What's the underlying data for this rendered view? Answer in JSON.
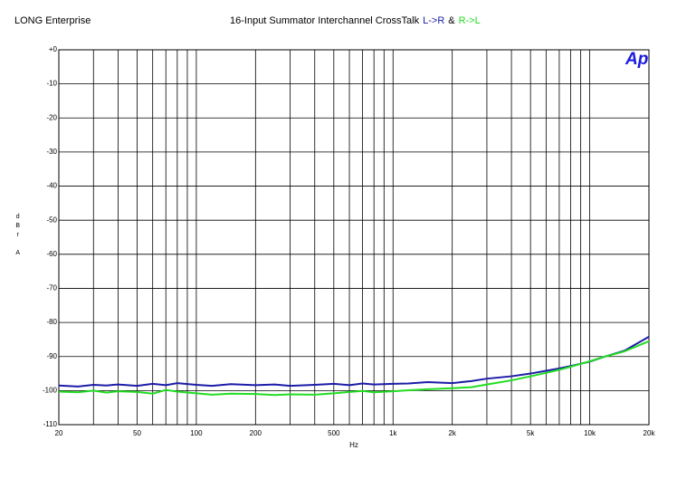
{
  "header": "LONG Enterprise",
  "logo": "Ap",
  "chart_data": {
    "type": "line",
    "title": "16-Input Summator  Interchannel CrossTalk",
    "title_joiner": "&",
    "xlabel": "Hz",
    "ylabel": "dBr A",
    "xscale": "log",
    "grid": true,
    "xlim": [
      20,
      20000
    ],
    "ylim": [
      -110,
      0
    ],
    "xticks": [
      20,
      50,
      100,
      200,
      500,
      {
        "value": 1000,
        "label": "1k"
      },
      {
        "value": 2000,
        "label": "2k"
      },
      {
        "value": 5000,
        "label": "5k"
      },
      {
        "value": 10000,
        "label": "10k"
      },
      {
        "value": 20000,
        "label": "20k"
      }
    ],
    "xminor": [
      30,
      40,
      60,
      70,
      80,
      90,
      300,
      400,
      600,
      700,
      800,
      900,
      3000,
      4000,
      6000,
      7000,
      8000,
      9000
    ],
    "yticks": [
      {
        "value": 0,
        "label": "+0"
      },
      -10,
      -20,
      -30,
      -40,
      -50,
      -60,
      -70,
      -80,
      -90,
      -100,
      -110
    ],
    "x": [
      20,
      25,
      30,
      35,
      40,
      50,
      60,
      70,
      80,
      100,
      120,
      150,
      200,
      250,
      300,
      400,
      500,
      600,
      700,
      800,
      1000,
      1200,
      1500,
      2000,
      2500,
      3000,
      4000,
      5000,
      6000,
      7000,
      8000,
      10000,
      12000,
      15000,
      20000
    ],
    "series": [
      {
        "name": "L->R",
        "color": "#1c1ca8",
        "values": [
          -98.5,
          -98.8,
          -98.3,
          -98.5,
          -98.2,
          -98.6,
          -98.0,
          -98.4,
          -97.8,
          -98.3,
          -98.6,
          -98.1,
          -98.4,
          -98.2,
          -98.6,
          -98.3,
          -98.0,
          -98.4,
          -97.9,
          -98.2,
          -98.0,
          -97.9,
          -97.5,
          -97.8,
          -97.2,
          -96.5,
          -95.8,
          -95.0,
          -94.2,
          -93.5,
          -92.8,
          -91.5,
          -90.0,
          -88.3,
          -84.2
        ]
      },
      {
        "name": "R->L",
        "color": "#22dd22",
        "values": [
          -100.3,
          -100.5,
          -100.0,
          -100.6,
          -100.2,
          -100.4,
          -100.9,
          -99.8,
          -100.3,
          -100.8,
          -101.2,
          -100.9,
          -101.0,
          -101.3,
          -101.1,
          -101.2,
          -100.8,
          -100.4,
          -100.1,
          -100.5,
          -100.2,
          -99.9,
          -99.6,
          -99.3,
          -99.0,
          -98.2,
          -97.0,
          -95.8,
          -94.8,
          -93.9,
          -93.0,
          -91.4,
          -90.0,
          -88.5,
          -85.5
        ]
      }
    ]
  }
}
